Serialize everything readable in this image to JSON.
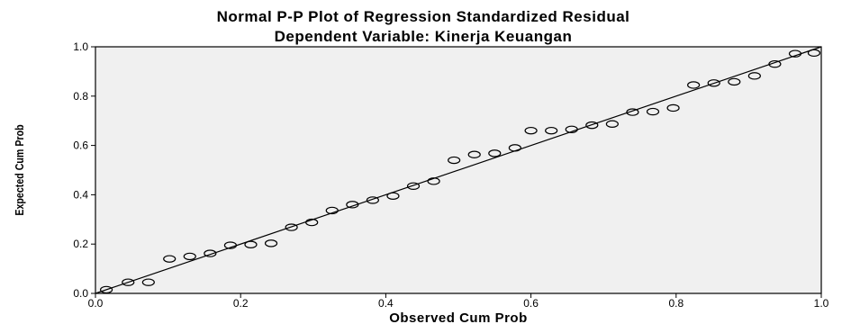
{
  "colors": {
    "plot_background": "#f0f0f0",
    "axis": "#000000",
    "marker_stroke": "#000000",
    "reference_line": "#000000"
  },
  "chart_data": {
    "type": "scatter",
    "title": "Normal P-P Plot of Regression Standardized Residual",
    "subtitle": "Dependent Variable: Kinerja Keuangan",
    "xlabel": "Observed Cum Prob",
    "ylabel": "Expected Cum Prob",
    "xlim": [
      0.0,
      1.0
    ],
    "ylim": [
      0.0,
      1.0
    ],
    "xticks": [
      "0.0",
      "0.2",
      "0.4",
      "0.6",
      "0.8",
      "1.0"
    ],
    "yticks": [
      "0.0",
      "0.2",
      "0.4",
      "0.6",
      "0.8",
      "1.0"
    ],
    "grid": false,
    "marker": "hollow-circle",
    "reference_line": {
      "from": [
        0.0,
        0.0
      ],
      "to": [
        1.0,
        1.0
      ]
    },
    "points": [
      {
        "x": 0.015,
        "y": 0.015
      },
      {
        "x": 0.045,
        "y": 0.045
      },
      {
        "x": 0.073,
        "y": 0.045
      },
      {
        "x": 0.102,
        "y": 0.14
      },
      {
        "x": 0.13,
        "y": 0.15
      },
      {
        "x": 0.158,
        "y": 0.162
      },
      {
        "x": 0.186,
        "y": 0.195
      },
      {
        "x": 0.214,
        "y": 0.198
      },
      {
        "x": 0.242,
        "y": 0.203
      },
      {
        "x": 0.27,
        "y": 0.268
      },
      {
        "x": 0.298,
        "y": 0.288
      },
      {
        "x": 0.326,
        "y": 0.336
      },
      {
        "x": 0.354,
        "y": 0.36
      },
      {
        "x": 0.382,
        "y": 0.378
      },
      {
        "x": 0.41,
        "y": 0.395
      },
      {
        "x": 0.438,
        "y": 0.435
      },
      {
        "x": 0.466,
        "y": 0.455
      },
      {
        "x": 0.494,
        "y": 0.54
      },
      {
        "x": 0.522,
        "y": 0.563
      },
      {
        "x": 0.55,
        "y": 0.568
      },
      {
        "x": 0.578,
        "y": 0.59
      },
      {
        "x": 0.6,
        "y": 0.66
      },
      {
        "x": 0.628,
        "y": 0.66
      },
      {
        "x": 0.656,
        "y": 0.665
      },
      {
        "x": 0.684,
        "y": 0.682
      },
      {
        "x": 0.712,
        "y": 0.687
      },
      {
        "x": 0.74,
        "y": 0.735
      },
      {
        "x": 0.768,
        "y": 0.737
      },
      {
        "x": 0.796,
        "y": 0.752
      },
      {
        "x": 0.824,
        "y": 0.845
      },
      {
        "x": 0.852,
        "y": 0.853
      },
      {
        "x": 0.88,
        "y": 0.858
      },
      {
        "x": 0.908,
        "y": 0.882
      },
      {
        "x": 0.936,
        "y": 0.93
      },
      {
        "x": 0.964,
        "y": 0.972
      },
      {
        "x": 0.99,
        "y": 0.975
      }
    ]
  }
}
